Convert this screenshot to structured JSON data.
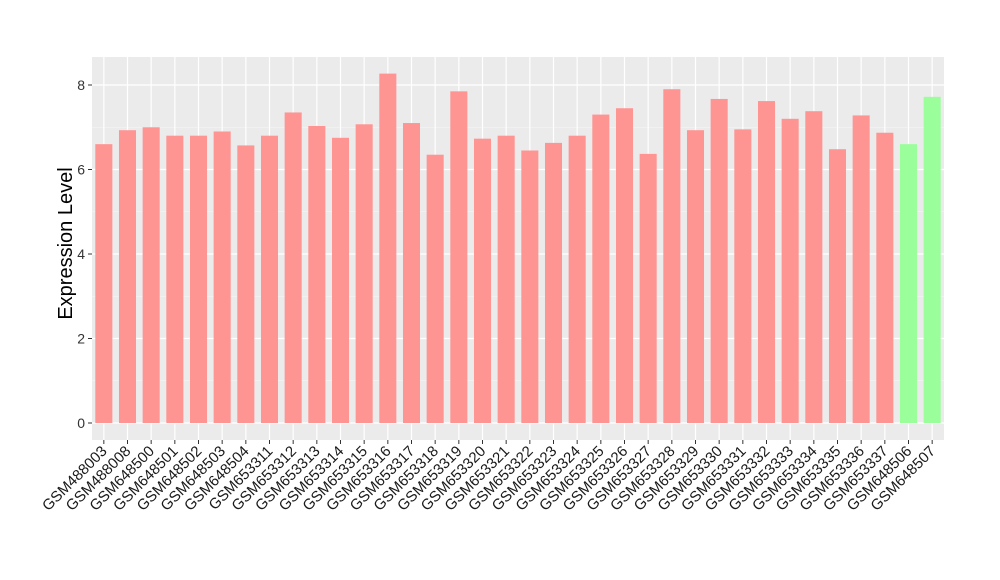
{
  "chart_data": {
    "type": "bar",
    "title": "",
    "xlabel": "",
    "ylabel": "Expression Level",
    "ylim": [
      0,
      8.6
    ],
    "yticks": [
      0,
      2,
      4,
      6,
      8
    ],
    "grid": true,
    "background": "#ebebeb",
    "categories": [
      "GSM488003",
      "GSM488008",
      "GSM648500",
      "GSM648501",
      "GSM648502",
      "GSM648503",
      "GSM648504",
      "GSM653311",
      "GSM653312",
      "GSM653313",
      "GSM653314",
      "GSM653315",
      "GSM653316",
      "GSM653317",
      "GSM653318",
      "GSM653319",
      "GSM653320",
      "GSM653321",
      "GSM653322",
      "GSM653323",
      "GSM653324",
      "GSM653325",
      "GSM653326",
      "GSM653327",
      "GSM653328",
      "GSM653329",
      "GSM653330",
      "GSM653331",
      "GSM653332",
      "GSM653333",
      "GSM653334",
      "GSM653335",
      "GSM653336",
      "GSM653337",
      "GSM648506",
      "GSM648507"
    ],
    "values": [
      6.6,
      6.93,
      7.0,
      6.8,
      6.8,
      6.9,
      6.57,
      6.8,
      7.35,
      7.03,
      6.75,
      7.07,
      8.27,
      7.1,
      6.35,
      7.85,
      6.73,
      6.8,
      6.45,
      6.63,
      6.8,
      7.3,
      7.45,
      6.37,
      7.9,
      6.93,
      7.67,
      6.95,
      7.62,
      7.2,
      7.38,
      6.48,
      7.28,
      6.87,
      6.6,
      7.72
    ],
    "groups": [
      "a",
      "a",
      "a",
      "a",
      "a",
      "a",
      "a",
      "a",
      "a",
      "a",
      "a",
      "a",
      "a",
      "a",
      "a",
      "a",
      "a",
      "a",
      "a",
      "a",
      "a",
      "a",
      "a",
      "a",
      "a",
      "a",
      "a",
      "a",
      "a",
      "a",
      "a",
      "a",
      "a",
      "a",
      "b",
      "b"
    ],
    "colors": {
      "a": "#ff9593",
      "b": "#9afe9a"
    }
  }
}
